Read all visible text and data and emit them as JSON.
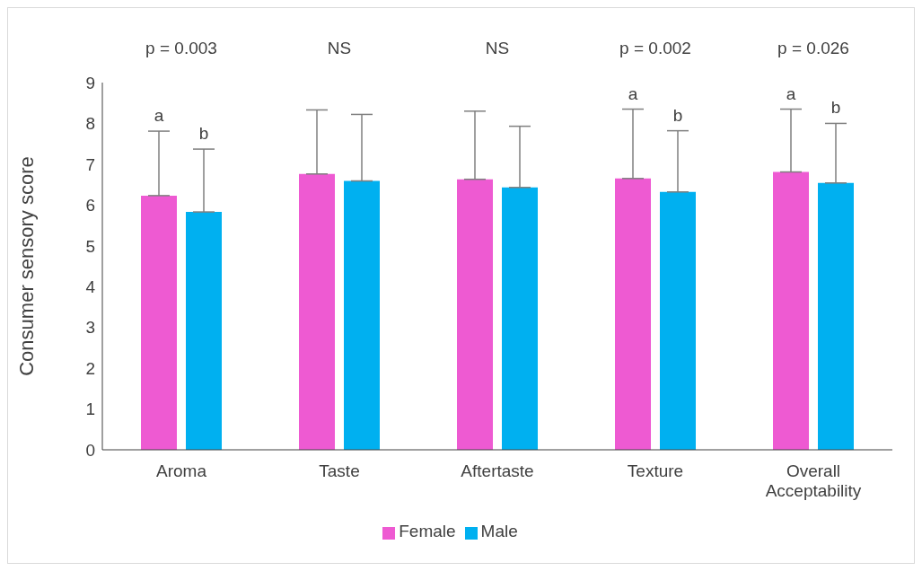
{
  "chart_data": {
    "type": "bar",
    "ylabel": "Consumer sensory score",
    "categories": [
      "Aroma",
      "Taste",
      "Aftertaste",
      "Texture",
      "Overall Acceptability"
    ],
    "series": [
      {
        "name": "Female",
        "color": "#ee5ad2",
        "values": [
          6.23,
          6.76,
          6.63,
          6.65,
          6.81
        ],
        "errors": [
          1.58,
          1.57,
          1.67,
          1.7,
          1.54
        ]
      },
      {
        "name": "Male",
        "color": "#00b0f0",
        "values": [
          5.83,
          6.59,
          6.43,
          6.32,
          6.54
        ],
        "errors": [
          1.54,
          1.63,
          1.5,
          1.5,
          1.46
        ]
      }
    ],
    "annotations": [
      "p = 0.003",
      "NS",
      "NS",
      "p = 0.002",
      "p = 0.026",
      "a",
      "b",
      "a",
      "b",
      "a",
      "b"
    ],
    "ylim": [
      0,
      9
    ],
    "yticks": [
      0,
      1,
      2,
      3,
      4,
      5,
      6,
      7,
      8,
      9
    ],
    "grid": false,
    "legend": "bottom"
  }
}
